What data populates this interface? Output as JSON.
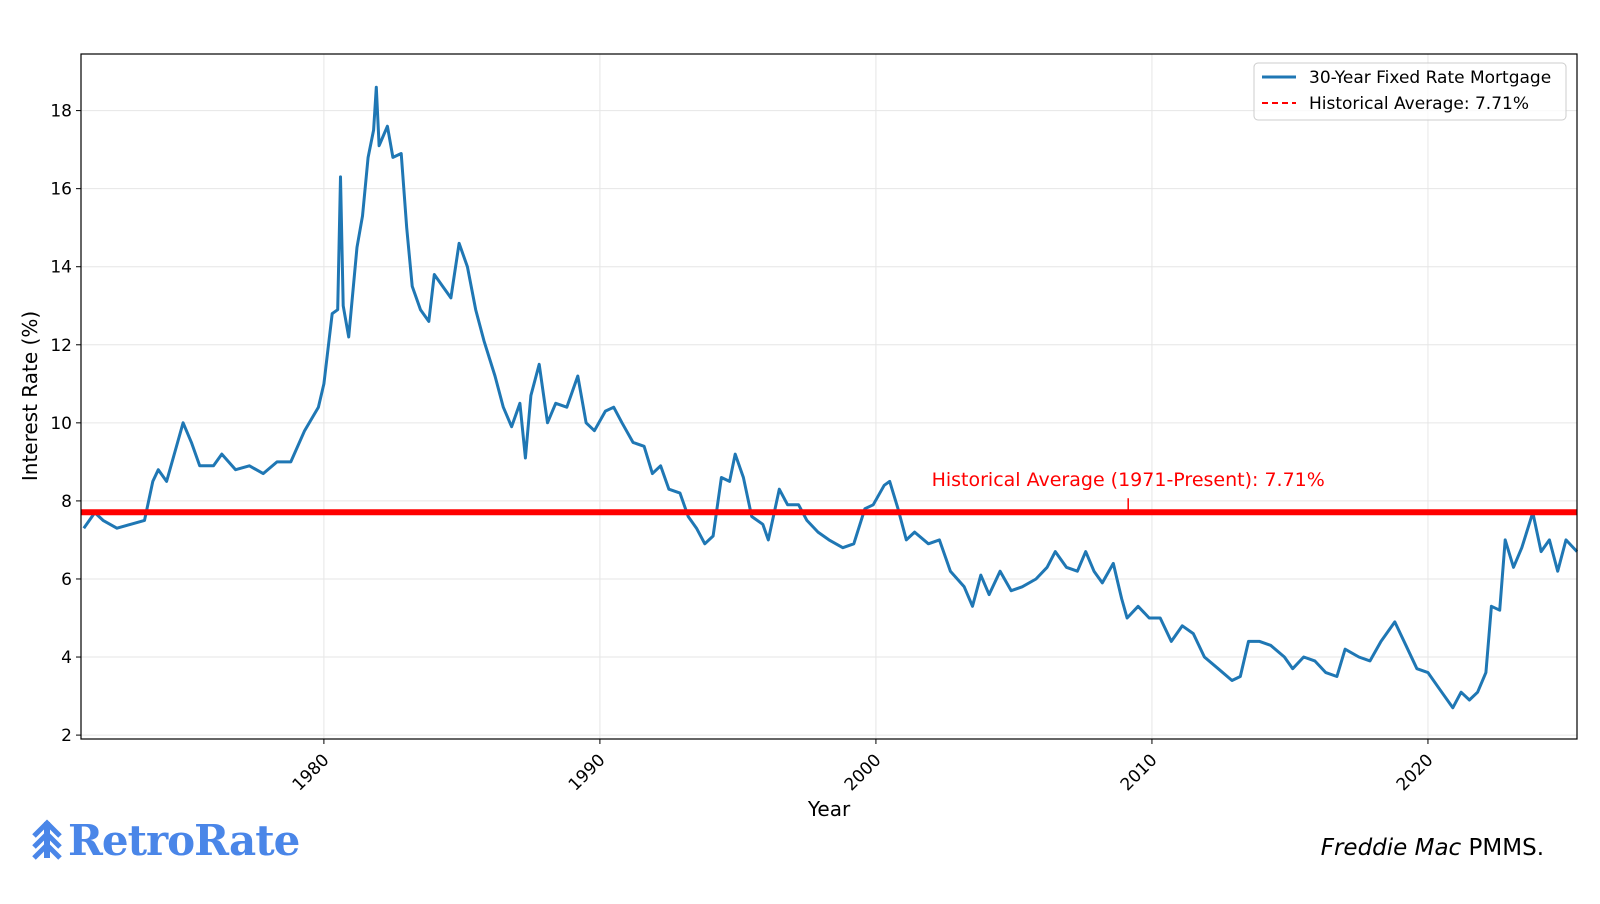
{
  "chart_data": {
    "type": "line",
    "x_label": "Year",
    "y_label": "Interest Rate (%)",
    "xlim": [
      1971.2,
      2025.4
    ],
    "xticks": [
      1980,
      1990,
      2000,
      2010,
      2020
    ],
    "ylim": [
      1.9,
      19.45
    ],
    "yticks": [
      2,
      4,
      6,
      8,
      10,
      12,
      14,
      16,
      18
    ],
    "grid": true,
    "legend": "upper right",
    "x": [
      1971.3,
      1971.7,
      1972.0,
      1972.5,
      1973.0,
      1973.5,
      1973.8,
      1974.0,
      1974.3,
      1974.7,
      1974.9,
      1975.2,
      1975.5,
      1976.0,
      1976.3,
      1976.8,
      1977.3,
      1977.8,
      1978.3,
      1978.8,
      1979.3,
      1979.8,
      1980.0,
      1980.3,
      1980.5,
      1980.6,
      1980.7,
      1980.9,
      1981.2,
      1981.4,
      1981.6,
      1981.8,
      1981.9,
      1982.0,
      1982.3,
      1982.5,
      1982.8,
      1983.0,
      1983.2,
      1983.5,
      1983.8,
      1984.0,
      1984.3,
      1984.6,
      1984.9,
      1985.2,
      1985.5,
      1985.8,
      1986.2,
      1986.5,
      1986.8,
      1987.1,
      1987.3,
      1987.5,
      1987.8,
      1988.1,
      1988.4,
      1988.8,
      1989.2,
      1989.5,
      1989.8,
      1990.2,
      1990.5,
      1990.8,
      1991.2,
      1991.6,
      1991.9,
      1992.2,
      1992.5,
      1992.9,
      1993.2,
      1993.5,
      1993.8,
      1994.1,
      1994.4,
      1994.7,
      1994.9,
      1995.2,
      1995.5,
      1995.9,
      1996.1,
      1996.5,
      1996.8,
      1997.2,
      1997.5,
      1997.9,
      1998.3,
      1998.8,
      1999.2,
      1999.6,
      1999.9,
      2000.3,
      2000.5,
      2000.8,
      2001.1,
      2001.4,
      2001.9,
      2002.3,
      2002.7,
      2003.2,
      2003.5,
      2003.8,
      2004.1,
      2004.5,
      2004.9,
      2005.3,
      2005.8,
      2006.2,
      2006.5,
      2006.9,
      2007.3,
      2007.6,
      2007.9,
      2008.2,
      2008.6,
      2008.9,
      2009.1,
      2009.5,
      2009.9,
      2010.3,
      2010.7,
      2011.1,
      2011.5,
      2011.9,
      2012.4,
      2012.9,
      2013.2,
      2013.5,
      2013.9,
      2014.3,
      2014.8,
      2015.1,
      2015.5,
      2015.9,
      2016.3,
      2016.7,
      2017.0,
      2017.5,
      2017.9,
      2018.3,
      2018.8,
      2019.2,
      2019.6,
      2020.0,
      2020.4,
      2020.9,
      2021.2,
      2021.5,
      2021.8,
      2022.1,
      2022.3,
      2022.6,
      2022.8,
      2023.1,
      2023.4,
      2023.8,
      2024.1,
      2024.4,
      2024.7,
      2025.0,
      2025.4
    ],
    "series": [
      {
        "name": "30-Year Fixed Rate Mortgage",
        "color": "#1f77b4",
        "values": [
          7.3,
          7.7,
          7.5,
          7.3,
          7.4,
          7.5,
          8.5,
          8.8,
          8.5,
          9.5,
          10.0,
          9.5,
          8.9,
          8.9,
          9.2,
          8.8,
          8.9,
          8.7,
          9.0,
          9.0,
          9.8,
          10.4,
          11.0,
          12.8,
          12.9,
          16.3,
          13.0,
          12.2,
          14.5,
          15.3,
          16.8,
          17.5,
          18.6,
          17.1,
          17.6,
          16.8,
          16.9,
          15.0,
          13.5,
          12.9,
          12.6,
          13.8,
          13.5,
          13.2,
          14.6,
          14.0,
          12.9,
          12.1,
          11.2,
          10.4,
          9.9,
          10.5,
          9.1,
          10.7,
          11.5,
          10.0,
          10.5,
          10.4,
          11.2,
          10.0,
          9.8,
          10.3,
          10.4,
          10.0,
          9.5,
          9.4,
          8.7,
          8.9,
          8.3,
          8.2,
          7.6,
          7.3,
          6.9,
          7.1,
          8.6,
          8.5,
          9.2,
          8.6,
          7.6,
          7.4,
          7.0,
          8.3,
          7.9,
          7.9,
          7.5,
          7.2,
          7.0,
          6.8,
          6.9,
          7.8,
          7.9,
          8.4,
          8.5,
          7.8,
          7.0,
          7.2,
          6.9,
          7.0,
          6.2,
          5.8,
          5.3,
          6.1,
          5.6,
          6.2,
          5.7,
          5.8,
          6.0,
          6.3,
          6.7,
          6.3,
          6.2,
          6.7,
          6.2,
          5.9,
          6.4,
          5.5,
          5.0,
          5.3,
          5.0,
          5.0,
          4.4,
          4.8,
          4.6,
          4.0,
          3.7,
          3.4,
          3.5,
          4.4,
          4.4,
          4.3,
          4.0,
          3.7,
          4.0,
          3.9,
          3.6,
          3.5,
          4.2,
          4.0,
          3.9,
          4.4,
          4.9,
          4.3,
          3.7,
          3.6,
          3.2,
          2.7,
          3.1,
          2.9,
          3.1,
          3.6,
          5.3,
          5.2,
          7.0,
          6.3,
          6.8,
          7.7,
          6.7,
          7.0,
          6.2,
          7.0,
          6.7
        ]
      }
    ],
    "reference_line": {
      "name": "Historical Average: 7.71%",
      "value": 7.71,
      "color": "#ff0000"
    },
    "annotation": "Historical Average (1971-Present): 7.71%"
  },
  "branding": {
    "logo": "RetroRate",
    "source_italic": "Freddie Mac",
    "source": "PMMS."
  }
}
